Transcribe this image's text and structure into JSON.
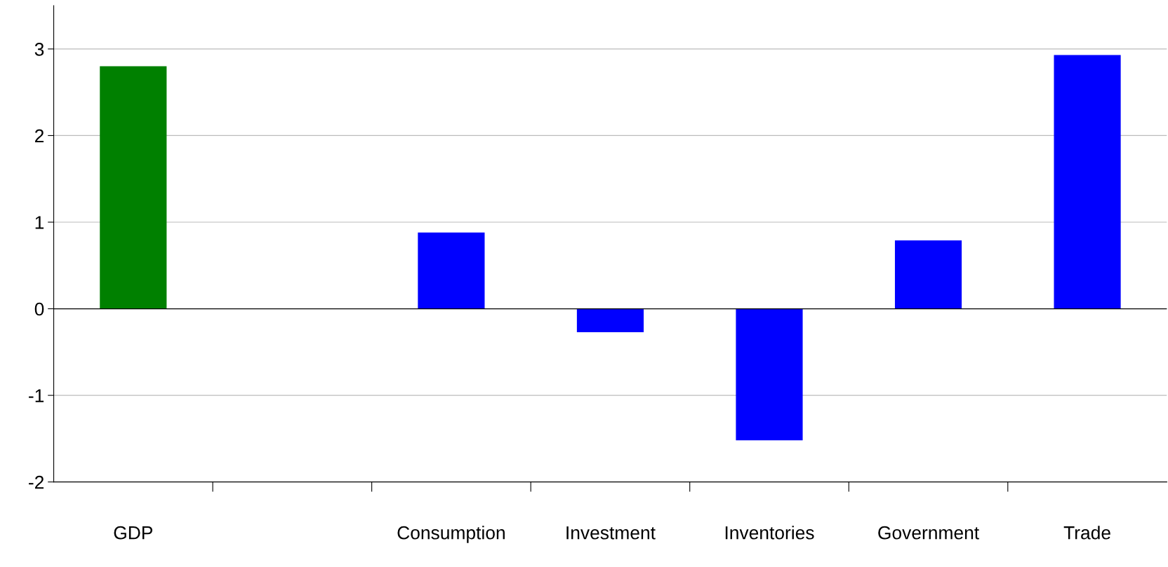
{
  "chart_data": {
    "type": "bar",
    "categories": [
      "GDP",
      null,
      "Consumption",
      "Investment",
      "Inventories",
      "Government",
      "Trade"
    ],
    "values": [
      2.8,
      null,
      0.88,
      -0.27,
      -1.52,
      0.79,
      2.93
    ],
    "colors": [
      "#008000",
      null,
      "#0000ff",
      "#0000ff",
      "#0000ff",
      "#0000ff",
      "#0000ff"
    ],
    "ylim": [
      -2,
      3.5
    ],
    "yticks": [
      -2,
      -1,
      0,
      1,
      2,
      3
    ],
    "grid": "y",
    "legend": false
  }
}
